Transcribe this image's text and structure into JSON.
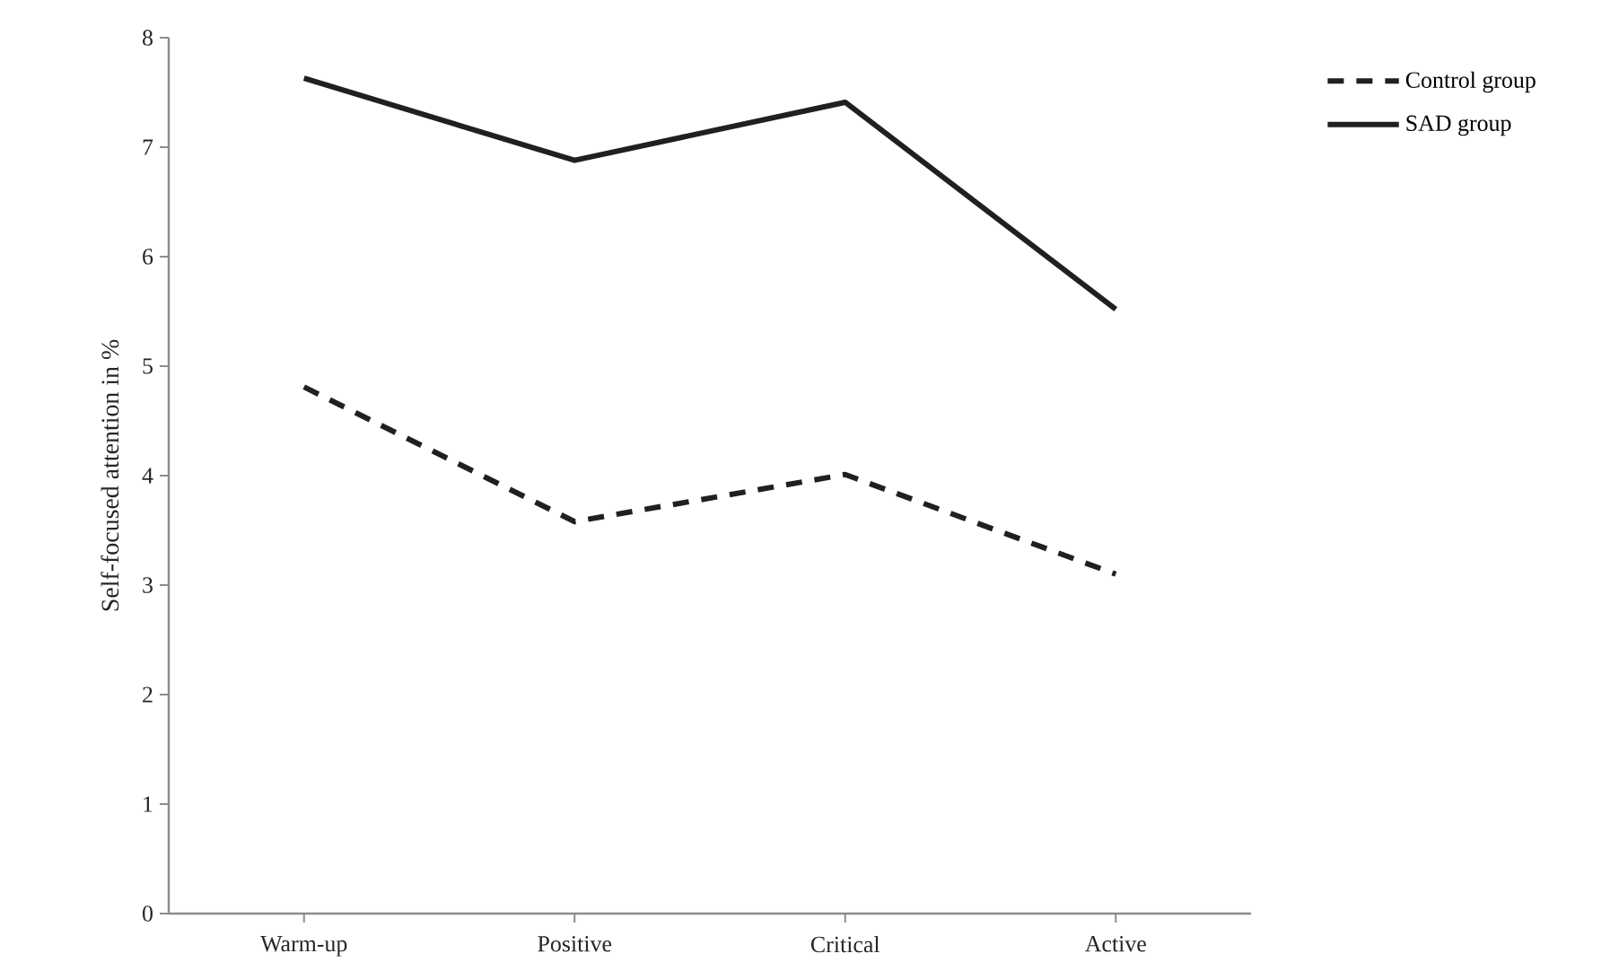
{
  "chart_data": {
    "type": "line",
    "ylabel": "Self-focused attention in %",
    "categories": [
      "Warm-up",
      "Positive",
      "Critical",
      "Active"
    ],
    "series": [
      {
        "name": "Control group",
        "color": "#231f20",
        "line_style": "dashed",
        "values": [
          4.81,
          3.58,
          4.01,
          3.1
        ]
      },
      {
        "name": "SAD group",
        "color": "#231f20",
        "line_style": "solid",
        "values": [
          7.63,
          6.88,
          7.41,
          5.52
        ]
      }
    ],
    "ylim": [
      0,
      8
    ],
    "yticks": [
      0,
      1,
      2,
      3,
      4,
      5,
      6,
      7,
      8
    ],
    "grid": false,
    "legend": "top right",
    "marker": "none"
  }
}
